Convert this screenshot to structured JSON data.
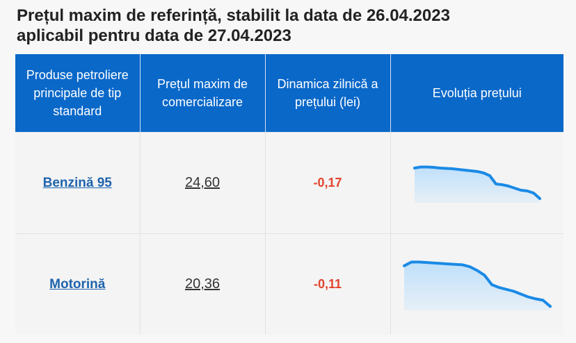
{
  "title": {
    "line1": "Prețul maxim de referință, stabilit la data de 26.04.2023",
    "line2": "aplicabil pentru data de 27.04.2023"
  },
  "table": {
    "headers": [
      "Produse petroliere principale de tip standard",
      "Prețul maxim de comercializare",
      "Dinamica zilnică a prețului (lei)",
      "Evoluția prețului"
    ],
    "rows": [
      {
        "product": "Benzină 95",
        "price": "24,60",
        "change": "-0,17"
      },
      {
        "product": "Motorină",
        "price": "20,36",
        "change": "-0,11"
      }
    ]
  },
  "colors": {
    "header_bg": "#0a68c9",
    "link": "#1f63ad",
    "negative": "#e2442f",
    "spark_line": "#1a8ae6",
    "spark_fill": "#bfe0fb"
  },
  "chart_data": [
    {
      "type": "area",
      "series": [
        {
          "values": [
            0.94,
            0.97,
            0.97,
            0.96,
            0.94,
            0.93,
            0.92,
            0.9,
            0.88,
            0.86,
            0.84,
            0.8,
            0.72,
            0.48,
            0.46,
            0.42,
            0.36,
            0.3,
            0.28,
            0.22,
            0.06
          ]
        }
      ]
    },
    {
      "type": "area",
      "series": [
        {
          "values": [
            0.9,
            0.98,
            0.98,
            0.97,
            0.96,
            0.95,
            0.94,
            0.93,
            0.92,
            0.88,
            0.8,
            0.7,
            0.5,
            0.44,
            0.4,
            0.36,
            0.3,
            0.24,
            0.2,
            0.17,
            0.04
          ]
        }
      ]
    }
  ]
}
